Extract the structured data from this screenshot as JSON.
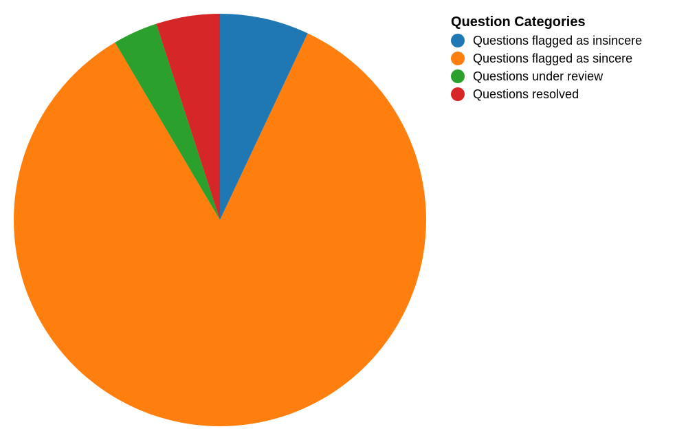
{
  "chart_data": {
    "type": "pie",
    "title": "",
    "legend": {
      "title": "Question Categories",
      "placement": "top-right"
    },
    "categories": [
      "Questions flagged as insincere",
      "Questions flagged as sincere",
      "Questions under review",
      "Questions resolved"
    ],
    "values": [
      7.0,
      84.5,
      3.5,
      5.0
    ],
    "colors": [
      "#1f77b4",
      "#ff7f0e",
      "#2ca02c",
      "#d62728"
    ]
  }
}
